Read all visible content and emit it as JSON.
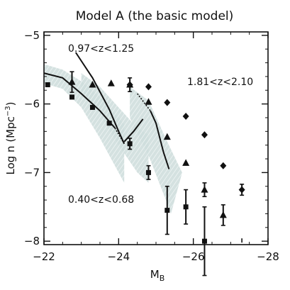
{
  "chart_data": {
    "type": "scatter",
    "title": "Model A (the basic model)",
    "xlabel": "M_B",
    "xlabel_main": "M",
    "xlabel_sub": "B",
    "ylabel": "Log n (Mpc^-3)",
    "ylabel_main": "Log n (Mpc",
    "ylabel_sup": "−3",
    "ylabel_close": ")",
    "xlim": [
      -22,
      -28
    ],
    "ylim": [
      -8.05,
      -4.95
    ],
    "x_ticks": [
      -22,
      -24,
      -26,
      -28
    ],
    "x_tick_labels": [
      "−22",
      "−24",
      "−26",
      "−28"
    ],
    "y_ticks": [
      -5,
      -6,
      -7,
      -8
    ],
    "y_tick_labels": [
      "−5",
      "−6",
      "−7",
      "−8"
    ],
    "grid": false,
    "annotations": [
      "0.97<z<1.25",
      "1.81<z<2.10",
      "0.40<z<0.68"
    ],
    "series": [
      {
        "marker": "square",
        "points": [
          {
            "x": -22.1,
            "y": -5.72
          },
          {
            "x": -22.75,
            "y": -5.9
          },
          {
            "x": -23.3,
            "y": -6.05
          },
          {
            "x": -23.75,
            "y": -6.28
          },
          {
            "x": -24.3,
            "y": -6.58,
            "err": 0.08
          },
          {
            "x": -24.8,
            "y": -7.0,
            "err": 0.1
          },
          {
            "x": -25.3,
            "y": -7.55,
            "err": 0.35
          },
          {
            "x": -25.8,
            "y": -7.5,
            "err": 0.25
          },
          {
            "x": -26.3,
            "y": -8.0,
            "err": 0.5
          }
        ]
      },
      {
        "marker": "triangle",
        "points": [
          {
            "x": -22.75,
            "y": -5.68,
            "err": 0.15
          },
          {
            "x": -23.3,
            "y": -5.72
          },
          {
            "x": -23.8,
            "y": -5.7
          },
          {
            "x": -24.3,
            "y": -5.72
          },
          {
            "x": -24.8,
            "y": -5.97
          },
          {
            "x": -25.3,
            "y": -6.48
          },
          {
            "x": -25.8,
            "y": -6.86
          },
          {
            "x": -26.3,
            "y": -7.25,
            "err": 0.1
          },
          {
            "x": -26.8,
            "y": -7.62,
            "err": 0.15
          }
        ]
      },
      {
        "marker": "diamond",
        "points": [
          {
            "x": -24.3,
            "y": -5.72,
            "err": 0.1
          },
          {
            "x": -24.8,
            "y": -5.75
          },
          {
            "x": -25.3,
            "y": -5.98
          },
          {
            "x": -25.8,
            "y": -6.18
          },
          {
            "x": -26.3,
            "y": -6.45
          },
          {
            "x": -26.8,
            "y": -6.9
          },
          {
            "x": -27.3,
            "y": -7.25,
            "err": 0.08
          },
          {
            "x": -27.3,
            "y": -8.0,
            "kind": "upper-limit"
          }
        ]
      }
    ],
    "model_curves": [
      {
        "name": "0.40<z<0.68",
        "solid": [
          [
            -22.0,
            -5.55
          ],
          [
            -22.5,
            -5.62
          ],
          [
            -23.0,
            -5.85
          ],
          [
            -23.5,
            -6.1
          ],
          [
            -23.9,
            -6.35
          ]
        ],
        "dotted": [
          [
            -23.9,
            -6.35
          ],
          [
            -24.15,
            -6.58
          ]
        ],
        "band_upper": [
          [
            -22.0,
            -5.42
          ],
          [
            -22.5,
            -5.5
          ],
          [
            -23.0,
            -5.67
          ],
          [
            -23.5,
            -5.9
          ],
          [
            -24.0,
            -6.2
          ],
          [
            -24.15,
            -6.3
          ]
        ],
        "band_lower": [
          [
            -22.0,
            -5.7
          ],
          [
            -22.5,
            -5.78
          ],
          [
            -23.0,
            -6.05
          ],
          [
            -23.5,
            -6.5
          ],
          [
            -24.0,
            -7.0
          ],
          [
            -24.15,
            -7.15
          ]
        ]
      },
      {
        "name": "0.97<z<1.25",
        "solid_a": [
          [
            -22.85,
            -5.25
          ],
          [
            -23.3,
            -5.62
          ],
          [
            -23.75,
            -6.08
          ],
          [
            -24.0,
            -6.4
          ],
          [
            -24.15,
            -6.58
          ]
        ],
        "solid_b": [
          [
            -24.15,
            -6.55
          ],
          [
            -24.4,
            -6.4
          ],
          [
            -24.65,
            -6.22
          ]
        ],
        "band_upper": [
          [
            -23.0,
            -5.55
          ],
          [
            -23.5,
            -5.75
          ],
          [
            -24.0,
            -6.05
          ],
          [
            -24.5,
            -6.35
          ],
          [
            -24.8,
            -6.45
          ]
        ],
        "band_lower": [
          [
            -23.0,
            -5.8
          ],
          [
            -23.5,
            -6.15
          ],
          [
            -24.0,
            -6.6
          ],
          [
            -24.5,
            -7.0
          ],
          [
            -24.8,
            -7.15
          ]
        ]
      },
      {
        "name": "1.81<z<2.10",
        "solid": [
          [
            -24.85,
            -6.1
          ],
          [
            -25.0,
            -6.28
          ],
          [
            -25.2,
            -6.7
          ],
          [
            -25.35,
            -6.95
          ]
        ],
        "dotted": [
          [
            -24.5,
            -5.85
          ],
          [
            -24.85,
            -6.1
          ]
        ],
        "band_upper": [
          [
            -24.3,
            -5.75
          ],
          [
            -24.8,
            -5.95
          ],
          [
            -25.3,
            -6.55
          ],
          [
            -25.7,
            -7.0
          ]
        ],
        "band_lower": [
          [
            -24.3,
            -6.2
          ],
          [
            -24.8,
            -6.75
          ],
          [
            -25.3,
            -7.45
          ],
          [
            -25.4,
            -7.6
          ]
        ]
      }
    ]
  }
}
